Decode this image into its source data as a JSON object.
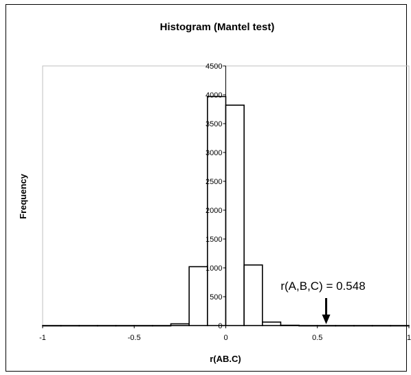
{
  "chart_data": {
    "type": "bar",
    "title": "Histogram (Mantel test)",
    "xlabel": "r(AB.C)",
    "ylabel": "Frequency",
    "xlim": [
      -1,
      1
    ],
    "ylim": [
      0,
      4500
    ],
    "x_ticks": [
      "-1",
      "-0.5",
      "0",
      "0.5",
      "1"
    ],
    "x_tick_values": [
      -1,
      -0.5,
      0,
      0.5,
      1
    ],
    "y_ticks": [
      "0",
      "500",
      "1000",
      "1500",
      "2000",
      "2500",
      "3000",
      "3500",
      "4000",
      "4500"
    ],
    "y_tick_values": [
      0,
      500,
      1000,
      1500,
      2000,
      2500,
      3000,
      3500,
      4000,
      4500
    ],
    "bin_width": 0.1,
    "bins": [
      {
        "x0": -1.0,
        "x1": -0.9,
        "count": 0
      },
      {
        "x0": -0.9,
        "x1": -0.8,
        "count": 0
      },
      {
        "x0": -0.8,
        "x1": -0.7,
        "count": 0
      },
      {
        "x0": -0.7,
        "x1": -0.6,
        "count": 0
      },
      {
        "x0": -0.6,
        "x1": -0.5,
        "count": 0
      },
      {
        "x0": -0.5,
        "x1": -0.4,
        "count": 0
      },
      {
        "x0": -0.4,
        "x1": -0.3,
        "count": 0
      },
      {
        "x0": -0.3,
        "x1": -0.2,
        "count": 30
      },
      {
        "x0": -0.2,
        "x1": -0.1,
        "count": 1020
      },
      {
        "x0": -0.1,
        "x1": 0.0,
        "count": 3970
      },
      {
        "x0": 0.0,
        "x1": 0.1,
        "count": 3820
      },
      {
        "x0": 0.1,
        "x1": 0.2,
        "count": 1050
      },
      {
        "x0": 0.2,
        "x1": 0.3,
        "count": 60
      },
      {
        "x0": 0.3,
        "x1": 0.4,
        "count": 5
      },
      {
        "x0": 0.4,
        "x1": 0.5,
        "count": 0
      },
      {
        "x0": 0.5,
        "x1": 0.6,
        "count": 0
      },
      {
        "x0": 0.6,
        "x1": 0.7,
        "count": 0
      },
      {
        "x0": 0.7,
        "x1": 0.8,
        "count": 0
      },
      {
        "x0": 0.8,
        "x1": 0.9,
        "count": 0
      },
      {
        "x0": 0.9,
        "x1": 1.0,
        "count": 0
      }
    ],
    "annotation": {
      "text": "r(A,B,C) = 0.548",
      "x": 0.548
    },
    "grid": false,
    "legend": "none",
    "colors": {
      "bar_fill": "#ffffff",
      "bar_stroke": "#000000",
      "plot_border": "#bfbfbf",
      "background": "#ffffff"
    }
  }
}
